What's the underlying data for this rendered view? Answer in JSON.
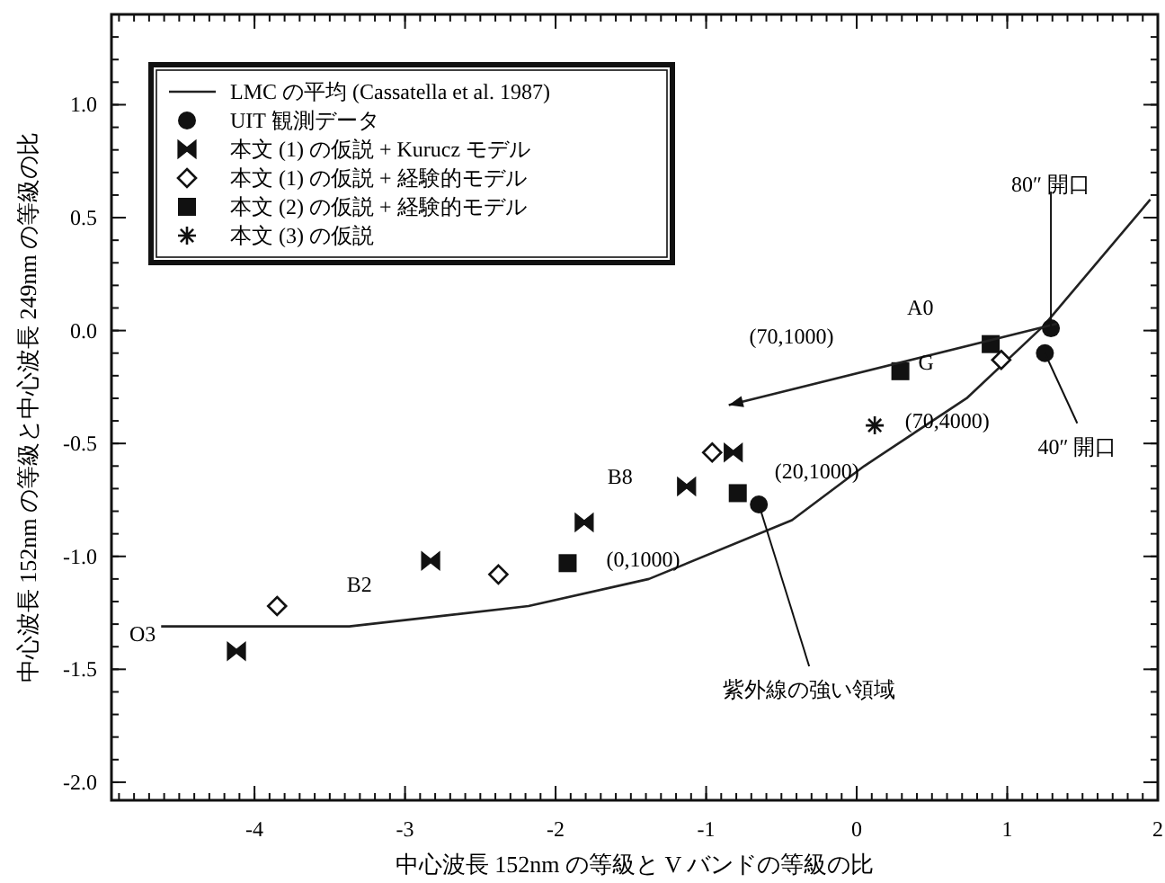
{
  "chart_data": {
    "type": "scatter",
    "xlabel": "中心波長 152nm の等級と V バンドの等級の比",
    "ylabel": "中心波長 152nm の等級と中心波長 249nm の等級の比",
    "xlim": [
      -4.95,
      2
    ],
    "ylim": [
      -2.08,
      1.4
    ],
    "xticks": [
      -4,
      -3,
      -2,
      -1,
      0,
      1,
      2
    ],
    "yticks": [
      {
        "value": 1,
        "label": "1.0"
      },
      {
        "value": 0.5,
        "label": "0.5"
      },
      {
        "value": 0,
        "label": "0.0"
      },
      {
        "value": -0.5,
        "label": "-0.5"
      },
      {
        "value": -1,
        "label": "-1.0"
      },
      {
        "value": -1.5,
        "label": "-1.5"
      },
      {
        "value": -2,
        "label": "-2.0"
      }
    ],
    "grid": false,
    "legend": "top left",
    "series": [
      {
        "name": "LMC の平均 (Cassatella et al. 1987)",
        "type": "line",
        "color": "#222222",
        "marker": "none",
        "line_style": "solid",
        "x": [
          -4.62,
          -3.37,
          -2.18,
          -1.38,
          -0.43,
          0.05,
          0.73,
          1.24,
          1.95
        ],
        "values": [
          -1.31,
          -1.31,
          -1.22,
          -1.1,
          -0.84,
          -0.6,
          -0.3,
          0.02,
          0.58
        ]
      },
      {
        "name": "UIT 観測データ",
        "color": "#111111",
        "marker": "circle",
        "x": [
          1.29,
          1.25,
          -0.65
        ],
        "values": [
          0.01,
          -0.1,
          -0.77
        ]
      },
      {
        "name": "本文 (1) の仮説 + Kurucz モデル",
        "color": "#111111",
        "x": [
          -0.82,
          -1.13,
          -1.81,
          -2.83,
          -4.12
        ],
        "values": [
          -0.54,
          -0.69,
          -0.85,
          -1.02,
          -1.42
        ]
      },
      {
        "name": "本文 (1) の仮説 + 経験的モデル",
        "color": "#111111",
        "marker": "diamond",
        "x": [
          0.96,
          -0.96,
          -2.38,
          -3.85
        ],
        "values": [
          -0.13,
          -0.54,
          -1.08,
          -1.22
        ]
      },
      {
        "name": "本文 (2) の仮説 + 経験的モデル",
        "color": "#111111",
        "marker": "square",
        "x": [
          0.89,
          0.29,
          -0.79,
          -1.92
        ],
        "values": [
          -0.06,
          -0.18,
          -0.72,
          -1.03
        ]
      },
      {
        "name": "本文 (3) の仮説",
        "color": "#111111",
        "marker": "cross",
        "x": [
          0.12
        ],
        "values": [
          -0.42
        ]
      },
      {
        "type": "line",
        "color": "#222222",
        "marker": "none",
        "line_style": "solid",
        "x": [
          1.33,
          -0.85
        ],
        "values": [
          0.03,
          -0.33
        ]
      }
    ],
    "annotations": [
      {
        "text": "O3",
        "x": -4.62,
        "y": -1.31
      },
      "B2",
      "B8",
      "A0",
      {
        "text": "G",
        "x": 0.46,
        "y": -0.14
      },
      "(70,1000)",
      {
        "text": "(70,4000)",
        "x": 0.96,
        "y": -0.13
      },
      {
        "text": "(20,1000)",
        "x": -0.79,
        "y": -0.72
      },
      {
        "text": "(0,1000)",
        "x": -1.92,
        "y": -1.03
      },
      {
        "text": "80″ 開口",
        "x": 1.29,
        "y": 0.01
      },
      {
        "text": "40″ 開口",
        "x": 1.25,
        "y": -0.1
      },
      {
        "text": "紫外線の強い領域",
        "x": -0.65,
        "y": -0.77
      }
    ]
  }
}
